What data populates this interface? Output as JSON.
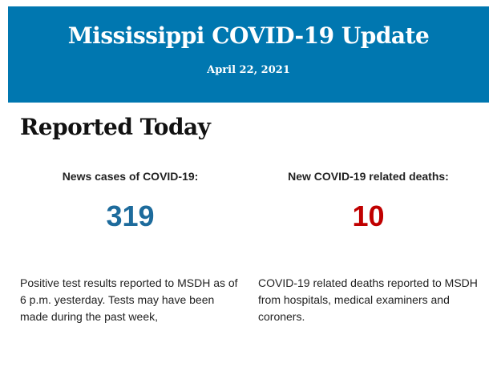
{
  "header": {
    "title": "Mississippi COVID-19 Update",
    "date": "April 22, 2021",
    "background_color": "#0077b0"
  },
  "section_title": "Reported Today",
  "stats": [
    {
      "label": "News cases of COVID-19:",
      "value": "319",
      "color": "#1d6b9c",
      "description": "Positive test results reported to MSDH as of 6 p.m. yesterday. Tests may have been made during the past week,"
    },
    {
      "label": "New COVID-19 related deaths:",
      "value": "10",
      "color": "#c00000",
      "description": "COVID-19 related deaths reported to MSDH from hospitals, medical examiners and coroners."
    }
  ]
}
